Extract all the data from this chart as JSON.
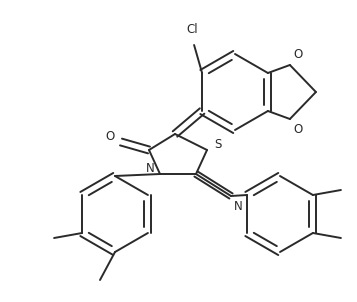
{
  "background_color": "#ffffff",
  "line_color": "#2a2a2a",
  "line_width": 1.4,
  "figsize": [
    3.57,
    3.02
  ],
  "dpi": 100,
  "xlim": [
    0,
    357
  ],
  "ylim": [
    0,
    302
  ]
}
